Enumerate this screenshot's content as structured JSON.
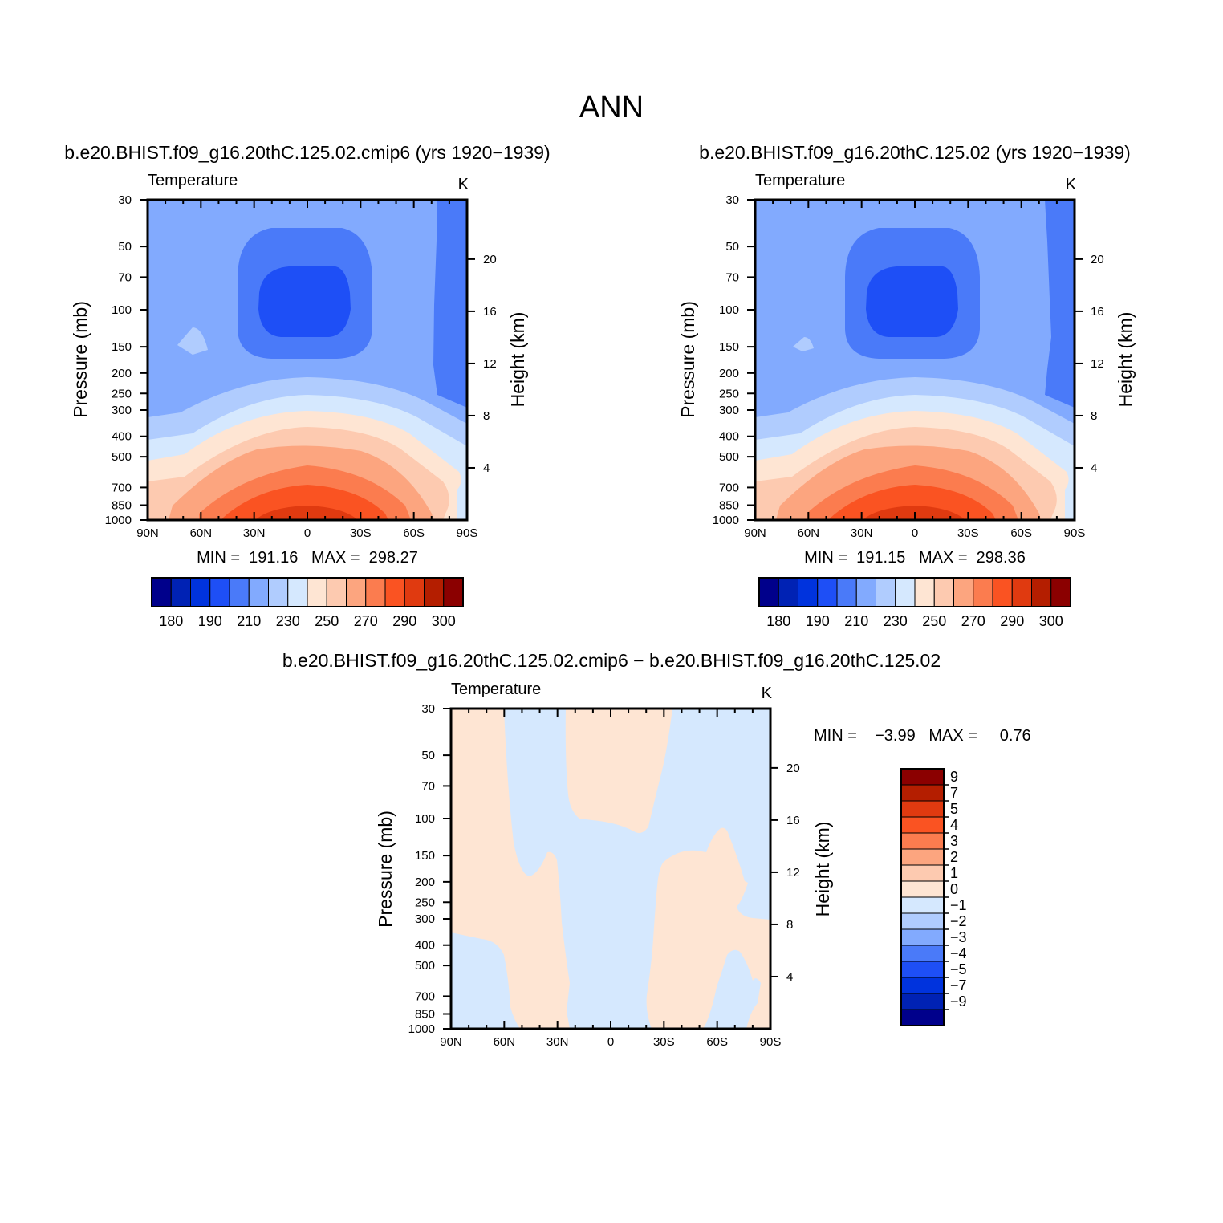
{
  "figure": {
    "title": "ANN"
  },
  "lat_ticks": [
    "90N",
    "60N",
    "30N",
    "0",
    "30S",
    "60S",
    "90S"
  ],
  "pressure_ticks": [
    "30",
    "50",
    "70",
    "100",
    "150",
    "200",
    "250",
    "300",
    "400",
    "500",
    "700",
    "850",
    "1000"
  ],
  "height_ticks": [
    "4",
    "8",
    "12",
    "16",
    "20"
  ],
  "colors": {
    "abs_levels": [
      "#00008b",
      "#0022b4",
      "#0033dd",
      "#1e4ff6",
      "#4a7af9",
      "#82aafe",
      "#b0ccfe",
      "#d5e8fe",
      "#fee5d3",
      "#fdcab0",
      "#fca57f",
      "#fb7c4f",
      "#fa5322",
      "#e03a10",
      "#b41e00",
      "#8b0000"
    ],
    "diff_levels": [
      "#00008b",
      "#0022b4",
      "#0033dd",
      "#1e4ff6",
      "#4a7af9",
      "#82aafe",
      "#b0ccfe",
      "#d5e8fe",
      "#fee5d3",
      "#fdcab0",
      "#fca57f",
      "#fb7c4f",
      "#fa5322",
      "#e03a10",
      "#b41e00",
      "#8b0000"
    ]
  },
  "panels": [
    {
      "title": "b.e20.BHIST.f09_g16.20thC.125.02.cmip6 (yrs 1920−1939)",
      "variable": "Temperature",
      "units": "K",
      "ylabel_left": "Pressure (mb)",
      "ylabel_right": "Height (km)",
      "stats": "MIN =  191.16   MAX =  298.27",
      "colorbar_labels": [
        "180",
        "190",
        "210",
        "230",
        "250",
        "270",
        "290",
        "300"
      ]
    },
    {
      "title": "b.e20.BHIST.f09_g16.20thC.125.02 (yrs 1920−1939)",
      "variable": "Temperature",
      "units": "K",
      "ylabel_left": "Pressure (mb)",
      "ylabel_right": "Height (km)",
      "stats": "MIN =  191.15   MAX =  298.36",
      "colorbar_labels": [
        "180",
        "190",
        "210",
        "230",
        "250",
        "270",
        "290",
        "300"
      ]
    },
    {
      "title": "b.e20.BHIST.f09_g16.20thC.125.02.cmip6 − b.e20.BHIST.f09_g16.20thC.125.02",
      "variable": "Temperature",
      "units": "K",
      "ylabel_left": "Pressure (mb)",
      "ylabel_right": "Height (km)",
      "stats": "MIN =    −3.99   MAX =     0.76",
      "colorbar_labels": [
        "9",
        "7",
        "5",
        "4",
        "3",
        "2",
        "1",
        "0",
        "−1",
        "−2",
        "−3",
        "−4",
        "−5",
        "−7",
        "−9"
      ]
    }
  ],
  "chart_data": [
    {
      "type": "heatmap",
      "title": "b.e20.BHIST.f09_g16.20thC.125.02.cmip6 (yrs 1920−1939)",
      "variable": "Temperature",
      "units": "K",
      "xlabel": "",
      "ylabel": "Pressure (mb)",
      "ylabel_right": "Height (km)",
      "x_categories": [
        "90N",
        "60N",
        "30N",
        "0",
        "30S",
        "60S",
        "90S"
      ],
      "y_levels_mb": [
        30,
        50,
        70,
        100,
        150,
        200,
        250,
        300,
        400,
        500,
        700,
        850,
        1000
      ],
      "y_scale": "log",
      "contour_levels": [
        180,
        185,
        190,
        200,
        210,
        220,
        230,
        240,
        250,
        260,
        270,
        280,
        290,
        295,
        300
      ],
      "min": 191.16,
      "max": 298.27
    },
    {
      "type": "heatmap",
      "title": "b.e20.BHIST.f09_g16.20thC.125.02 (yrs 1920−1939)",
      "variable": "Temperature",
      "units": "K",
      "xlabel": "",
      "ylabel": "Pressure (mb)",
      "ylabel_right": "Height (km)",
      "x_categories": [
        "90N",
        "60N",
        "30N",
        "0",
        "30S",
        "60S",
        "90S"
      ],
      "y_levels_mb": [
        30,
        50,
        70,
        100,
        150,
        200,
        250,
        300,
        400,
        500,
        700,
        850,
        1000
      ],
      "y_scale": "log",
      "contour_levels": [
        180,
        185,
        190,
        200,
        210,
        220,
        230,
        240,
        250,
        260,
        270,
        280,
        290,
        295,
        300
      ],
      "min": 191.15,
      "max": 298.36
    },
    {
      "type": "heatmap",
      "title": "b.e20.BHIST.f09_g16.20thC.125.02.cmip6 − b.e20.BHIST.f09_g16.20thC.125.02",
      "variable": "Temperature",
      "units": "K",
      "xlabel": "",
      "ylabel": "Pressure (mb)",
      "ylabel_right": "Height (km)",
      "x_categories": [
        "90N",
        "60N",
        "30N",
        "0",
        "30S",
        "60S",
        "90S"
      ],
      "y_levels_mb": [
        30,
        50,
        70,
        100,
        150,
        200,
        250,
        300,
        400,
        500,
        700,
        850,
        1000
      ],
      "y_scale": "log",
      "contour_levels": [
        -9,
        -7,
        -5,
        -4,
        -3,
        -2,
        -1,
        0,
        1,
        2,
        3,
        4,
        5,
        7,
        9
      ],
      "min": -3.99,
      "max": 0.76
    }
  ]
}
